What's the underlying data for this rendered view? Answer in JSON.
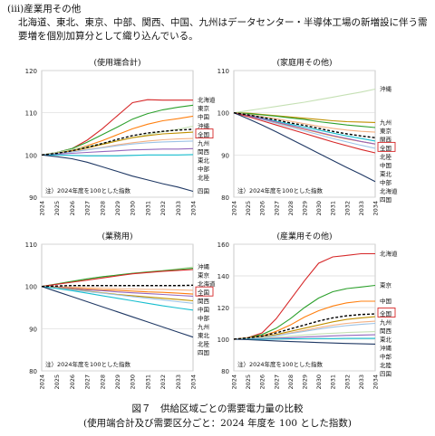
{
  "page": {
    "section_heading": "(ⅲ)産業用その他",
    "intro": "北海道、東北、東京、中部、関西、中国、九州はデータセンター・半導体工場の新増設に伴う需要増を個別加算分として織り込んでいる。",
    "figure_title": "図７　供給区域ごとの需要電力量の比較",
    "figure_subtitle": "(使用端合計及び需要区分ごと：2024 年度を 100 とした指数)"
  },
  "colors": {
    "北海道": "#d62728",
    "東北": "#9dc3e6",
    "東京": "#2ca02c",
    "中部": "#9467bd",
    "北陸": "#17becf",
    "関西": "#f4b183",
    "中国": "#ff7f0e",
    "四国": "#1f3864",
    "九州": "#bf9000",
    "沖縄": "#c5e0b4",
    "全国": "#000000"
  },
  "chart_data": [
    {
      "type": "line",
      "title": "(使用端合計)",
      "note": "注）2024年度を100とした指数",
      "x": [
        "2024",
        "2025",
        "2026",
        "2027",
        "2028",
        "2029",
        "2030",
        "2031",
        "2032",
        "2033",
        "2034"
      ],
      "ylim": [
        90,
        120
      ],
      "yticks": [
        90,
        100,
        110,
        120
      ],
      "grid": true,
      "series": [
        {
          "name": "北海道",
          "values": [
            100,
            100.6,
            101.5,
            103.5,
            106.2,
            109.3,
            112.4,
            113.1,
            113.0,
            113.0,
            113.0
          ]
        },
        {
          "name": "東京",
          "values": [
            100,
            100.6,
            101.5,
            103,
            104.8,
            106.6,
            108.5,
            109.8,
            110.7,
            111.3,
            111.8
          ]
        },
        {
          "name": "中国",
          "values": [
            100,
            100.5,
            101.2,
            102.2,
            103.4,
            104.8,
            106.2,
            107.3,
            108.1,
            108.6,
            109.2
          ]
        },
        {
          "name": "沖縄",
          "values": [
            100,
            100.6,
            101.3,
            102,
            102.7,
            103.4,
            104.1,
            104.8,
            105.5,
            106.1,
            106.8
          ]
        },
        {
          "name": "全国",
          "values": [
            100,
            100.4,
            101,
            101.8,
            102.7,
            103.7,
            104.6,
            105.2,
            105.6,
            105.9,
            106.1
          ]
        },
        {
          "name": "九州",
          "values": [
            100,
            100.4,
            101,
            101.7,
            102.5,
            103.3,
            104.1,
            104.6,
            105,
            105.2,
            105.4
          ]
        },
        {
          "name": "関西",
          "values": [
            100,
            100.3,
            100.8,
            101.3,
            101.8,
            102.4,
            102.9,
            103.3,
            103.6,
            103.8,
            103.9
          ]
        },
        {
          "name": "東北",
          "values": [
            100,
            100.3,
            100.7,
            101.2,
            101.7,
            102.2,
            102.6,
            102.9,
            103.1,
            103.2,
            103.3
          ]
        },
        {
          "name": "中部",
          "values": [
            100,
            100.2,
            100.4,
            100.6,
            100.8,
            101,
            101.2,
            101.3,
            101.4,
            101.4,
            101.5
          ]
        },
        {
          "name": "北陸",
          "values": [
            100,
            100,
            99.9,
            99.8,
            99.8,
            99.8,
            99.9,
            100,
            100,
            100,
            100.1
          ]
        },
        {
          "name": "四国",
          "values": [
            100,
            99.6,
            99.1,
            98.3,
            97.2,
            96.1,
            95,
            94.1,
            93.2,
            92.4,
            91.4
          ]
        }
      ],
      "labels": [
        "北海道",
        "東京",
        "中国",
        "沖縄",
        "全国",
        "九州",
        "関西",
        "東北",
        "中部",
        "北陸",
        "四国"
      ]
    },
    {
      "type": "line",
      "title": "(家庭用その他)",
      "note": "注）2024年度を100とした指数",
      "x": [
        "2024",
        "2025",
        "2026",
        "2027",
        "2028",
        "2029",
        "2030",
        "2031",
        "2032",
        "2033",
        "2034"
      ],
      "ylim": [
        80,
        110
      ],
      "yticks": [
        80,
        90,
        100,
        110
      ],
      "grid": true,
      "series": [
        {
          "name": "沖縄",
          "values": [
            100,
            100.5,
            101,
            101.5,
            102,
            102.5,
            103.1,
            103.7,
            104.3,
            104.9,
            105.6
          ]
        },
        {
          "name": "九州",
          "values": [
            100,
            99.9,
            99.6,
            99.3,
            99,
            98.7,
            98.4,
            98.1,
            97.9,
            97.8,
            97.7
          ]
        },
        {
          "name": "東京",
          "values": [
            100,
            99.8,
            99.5,
            99.2,
            98.8,
            98.4,
            97.9,
            97.5,
            97.1,
            96.8,
            96.5
          ]
        },
        {
          "name": "関西",
          "values": [
            100,
            99.6,
            99.1,
            98.6,
            98,
            97.4,
            96.8,
            96.3,
            95.9,
            95.6,
            95.4
          ]
        },
        {
          "name": "全国",
          "values": [
            100,
            99.5,
            98.9,
            98.3,
            97.6,
            97,
            96.3,
            95.6,
            95,
            94.5,
            94.1
          ]
        },
        {
          "name": "北陸",
          "values": [
            100,
            99.4,
            98.7,
            98,
            97.3,
            96.6,
            95.9,
            95.2,
            94.5,
            93.9,
            93.3
          ]
        },
        {
          "name": "中国",
          "values": [
            100,
            99.3,
            98.5,
            97.7,
            96.9,
            96.1,
            95.3,
            94.5,
            93.8,
            93.2,
            92.6
          ]
        },
        {
          "name": "東北",
          "values": [
            100,
            99.2,
            98.4,
            97.5,
            96.6,
            95.7,
            94.8,
            93.9,
            93.1,
            92.3,
            91.6
          ]
        },
        {
          "name": "中部",
          "values": [
            100,
            99.3,
            98.6,
            97.8,
            97,
            96.2,
            95.4,
            94.6,
            93.9,
            93.2,
            92.6
          ]
        },
        {
          "name": "北海道",
          "values": [
            100,
            99.1,
            98.1,
            97.1,
            96.1,
            95.1,
            94.1,
            93.1,
            92.2,
            91.3,
            90.5
          ]
        },
        {
          "name": "四国",
          "values": [
            100,
            98.6,
            97.1,
            95.5,
            93.8,
            92.1,
            90.4,
            88.7,
            87,
            85.4,
            83.7
          ]
        }
      ],
      "labels": [
        "沖縄",
        "九州",
        "東京",
        "関西",
        "全国",
        "北陸",
        "中国",
        "東北",
        "中部",
        "北海道",
        "四国"
      ]
    },
    {
      "type": "line",
      "title": "(業務用)",
      "note": "注）2024年度を100とした指数",
      "x": [
        "2024",
        "2025",
        "2026",
        "2027",
        "2028",
        "2029",
        "2030",
        "2031",
        "2032",
        "2033",
        "2034"
      ],
      "ylim": [
        80,
        110
      ],
      "yticks": [
        80,
        90,
        100,
        110
      ],
      "grid": true,
      "series": [
        {
          "name": "沖縄",
          "values": [
            100,
            100.6,
            101.2,
            101.8,
            102.3,
            102.7,
            103.1,
            103.5,
            103.8,
            104.2,
            104.6
          ]
        },
        {
          "name": "東京",
          "values": [
            100,
            100.6,
            101.2,
            101.8,
            102.3,
            102.7,
            103.1,
            103.4,
            103.7,
            104,
            104.3
          ]
        },
        {
          "name": "北海道",
          "values": [
            100,
            100.5,
            101,
            101.5,
            102,
            102.5,
            103,
            103.3,
            103.6,
            103.8,
            104
          ]
        },
        {
          "name": "全国",
          "values": [
            100,
            100.1,
            100.2,
            100.2,
            100.2,
            100.2,
            100.2,
            100.2,
            100.2,
            100.2,
            100.3
          ]
        },
        {
          "name": "関西",
          "values": [
            100,
            99.9,
            99.8,
            99.7,
            99.6,
            99.5,
            99.4,
            99.3,
            99.3,
            99.2,
            99.1
          ]
        },
        {
          "name": "中国",
          "values": [
            100,
            99.8,
            99.6,
            99.4,
            99.2,
            99.1,
            98.9,
            98.7,
            98.6,
            98.4,
            98.2
          ]
        },
        {
          "name": "中部",
          "values": [
            100,
            99.8,
            99.5,
            99.2,
            99,
            98.7,
            98.5,
            98.3,
            98.1,
            97.9,
            97.7
          ]
        },
        {
          "name": "九州",
          "values": [
            100,
            99.7,
            99.3,
            98.9,
            98.5,
            98.1,
            97.8,
            97.5,
            97.2,
            96.9,
            96.6
          ]
        },
        {
          "name": "東北",
          "values": [
            100,
            99.6,
            99.2,
            98.8,
            98.4,
            98,
            97.6,
            97.2,
            96.8,
            96.4,
            96
          ]
        },
        {
          "name": "北陸",
          "values": [
            100,
            99.5,
            99,
            98.4,
            97.8,
            97.2,
            96.6,
            96,
            95.4,
            94.9,
            94.4
          ]
        },
        {
          "name": "四国",
          "values": [
            100,
            98.8,
            97.6,
            96.4,
            95.2,
            94,
            92.8,
            91.6,
            90.4,
            89.2,
            88
          ]
        }
      ],
      "labels": [
        "沖縄",
        "東京",
        "北海道",
        "全国",
        "関西",
        "中国",
        "中部",
        "九州",
        "東北",
        "北陸",
        "四国"
      ]
    },
    {
      "type": "line",
      "title": "(産業用その他)",
      "note": "注）2024年度を100とした指数",
      "x": [
        "2024",
        "2025",
        "2026",
        "2027",
        "2028",
        "2029",
        "2030",
        "2031",
        "2032",
        "2033",
        "2034"
      ],
      "ylim": [
        80,
        160
      ],
      "yticks": [
        80,
        100,
        120,
        140,
        160
      ],
      "grid": true,
      "series": [
        {
          "name": "北海道",
          "values": [
            100,
            101,
            104,
            113,
            125,
            137,
            148,
            152,
            153,
            154,
            154
          ]
        },
        {
          "name": "東京",
          "values": [
            100,
            101,
            103,
            107,
            113,
            120,
            126,
            130,
            132,
            133,
            134
          ]
        },
        {
          "name": "中国",
          "values": [
            100,
            101,
            102,
            105,
            109,
            114,
            118,
            121,
            123,
            124,
            124
          ]
        },
        {
          "name": "全国",
          "values": [
            100,
            100.8,
            102,
            104,
            106.5,
            109,
            111.5,
            113.5,
            114.8,
            115.6,
            116
          ]
        },
        {
          "name": "九州",
          "values": [
            100,
            100.6,
            101.5,
            103,
            105,
            107,
            109,
            111,
            112.5,
            113.5,
            114.2
          ]
        },
        {
          "name": "関西",
          "values": [
            100,
            100.5,
            101.2,
            102.4,
            104,
            105.6,
            107.3,
            108.8,
            110,
            110.8,
            111.4
          ]
        },
        {
          "name": "東北",
          "values": [
            100,
            100.5,
            101.1,
            102.2,
            103.6,
            105,
            106.4,
            107.6,
            108.6,
            109.4,
            110
          ]
        },
        {
          "name": "沖縄",
          "values": [
            100,
            100.3,
            100.7,
            101.3,
            102,
            102.7,
            103.3,
            103.8,
            104.2,
            104.5,
            104.8
          ]
        },
        {
          "name": "中部",
          "values": [
            100,
            100.1,
            100.3,
            100.6,
            101,
            101.4,
            101.8,
            102.1,
            102.4,
            102.6,
            102.8
          ]
        },
        {
          "name": "北陸",
          "values": [
            100,
            100,
            100,
            100.1,
            100.2,
            100.3,
            100.4,
            100.4,
            100.5,
            100.5,
            100.5
          ]
        },
        {
          "name": "四国",
          "values": [
            100,
            99.7,
            99.3,
            98.9,
            98.5,
            98.2,
            97.9,
            97.6,
            97.3,
            97.1,
            96.9
          ]
        }
      ],
      "labels": [
        "北海道",
        "東京",
        "中国",
        "全国",
        "九州",
        "関西",
        "東北",
        "沖縄",
        "中部",
        "北陸",
        "四国"
      ]
    }
  ]
}
